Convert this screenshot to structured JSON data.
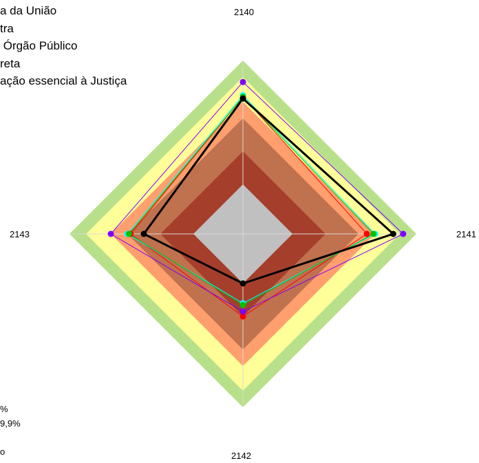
{
  "chart_data": {
    "type": "radar",
    "axes": [
      "2140",
      "2141",
      "2142",
      "2143"
    ],
    "scale_max": 100,
    "bands": [
      {
        "from": 0,
        "to": 30,
        "color": "#c0c0c0"
      },
      {
        "from": 30,
        "to": 50,
        "color": "#a53f2b"
      },
      {
        "from": 50,
        "to": 70,
        "color": "#c0714e"
      },
      {
        "from": 70,
        "to": 80,
        "color": "#ff9f6e"
      },
      {
        "from": 80,
        "to": 95,
        "color": "#ffff99"
      },
      {
        "from": 95,
        "to": 105,
        "color": "#b8e08a"
      }
    ],
    "legend_top": [
      "a da União",
      "tra",
      " Órgão Público",
      "reta",
      "ação essencial à Justiça"
    ],
    "legend_bottom": [
      "%",
      "9,9%",
      "o"
    ],
    "series": [
      {
        "color": "#000000",
        "values": [
          82,
          91,
          30,
          60
        ],
        "bold": true
      },
      {
        "color": "#ff0000",
        "values": [
          83,
          75,
          50,
          68
        ]
      },
      {
        "color": "#00ffff",
        "values": [
          84,
          80,
          42,
          70
        ]
      },
      {
        "color": "#00c000",
        "values": [
          83,
          79,
          43,
          69
        ]
      },
      {
        "color": "#8000ff",
        "values": [
          92,
          97,
          47,
          80
        ]
      }
    ]
  }
}
